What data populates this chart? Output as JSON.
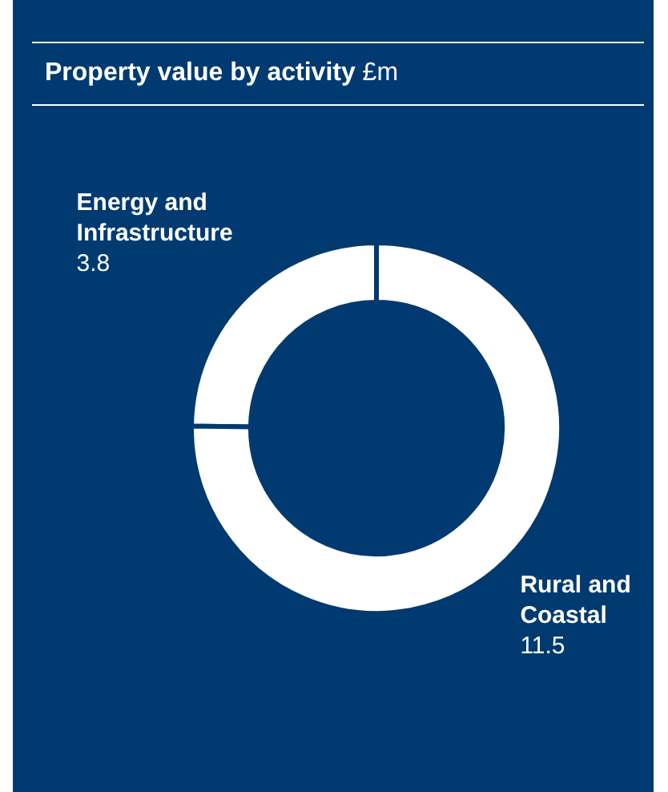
{
  "chart_data": {
    "type": "donut",
    "title": "Property value by activity £m",
    "categories": [
      "Energy and Infrastructure",
      "Rural and Coastal"
    ],
    "values": [
      3.8,
      11.5
    ],
    "colors": [
      "#ffffff",
      "#ffffff"
    ],
    "data_labels": true,
    "legend": false
  }
}
